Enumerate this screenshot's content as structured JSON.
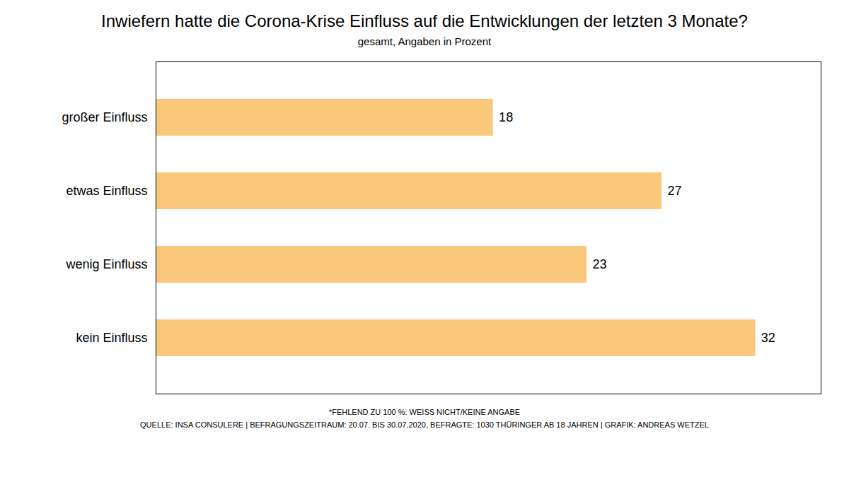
{
  "chart_data": {
    "type": "bar",
    "orientation": "horizontal",
    "title": "Inwiefern hatte die Corona-Krise Einfluss auf die Entwicklungen der letzten 3 Monate?",
    "subtitle": "gesamt, Angaben in Prozent",
    "categories": [
      "großer Einfluss",
      "etwas Einfluss",
      "wenig Einfluss",
      "kein Einfluss"
    ],
    "values": [
      18,
      27,
      23,
      32
    ],
    "color": "#F9C87A",
    "xlim": [
      0,
      35.5
    ],
    "data_labels": true,
    "tick_labels": "y",
    "grid": false,
    "annotations": [
      "*FEHLEND ZU 100 %: WEISS NICHT/KEINE ANGABE",
      "QUELLE: INSA CONSULERE | BEFRAGUNGSZEITRAUM: 20.07. BIS 30.07.2020, BEFRAGTE: 1030 THÜRINGER AB 18 JAHREN | GRAFIK: ANDREAS WETZEL"
    ]
  }
}
